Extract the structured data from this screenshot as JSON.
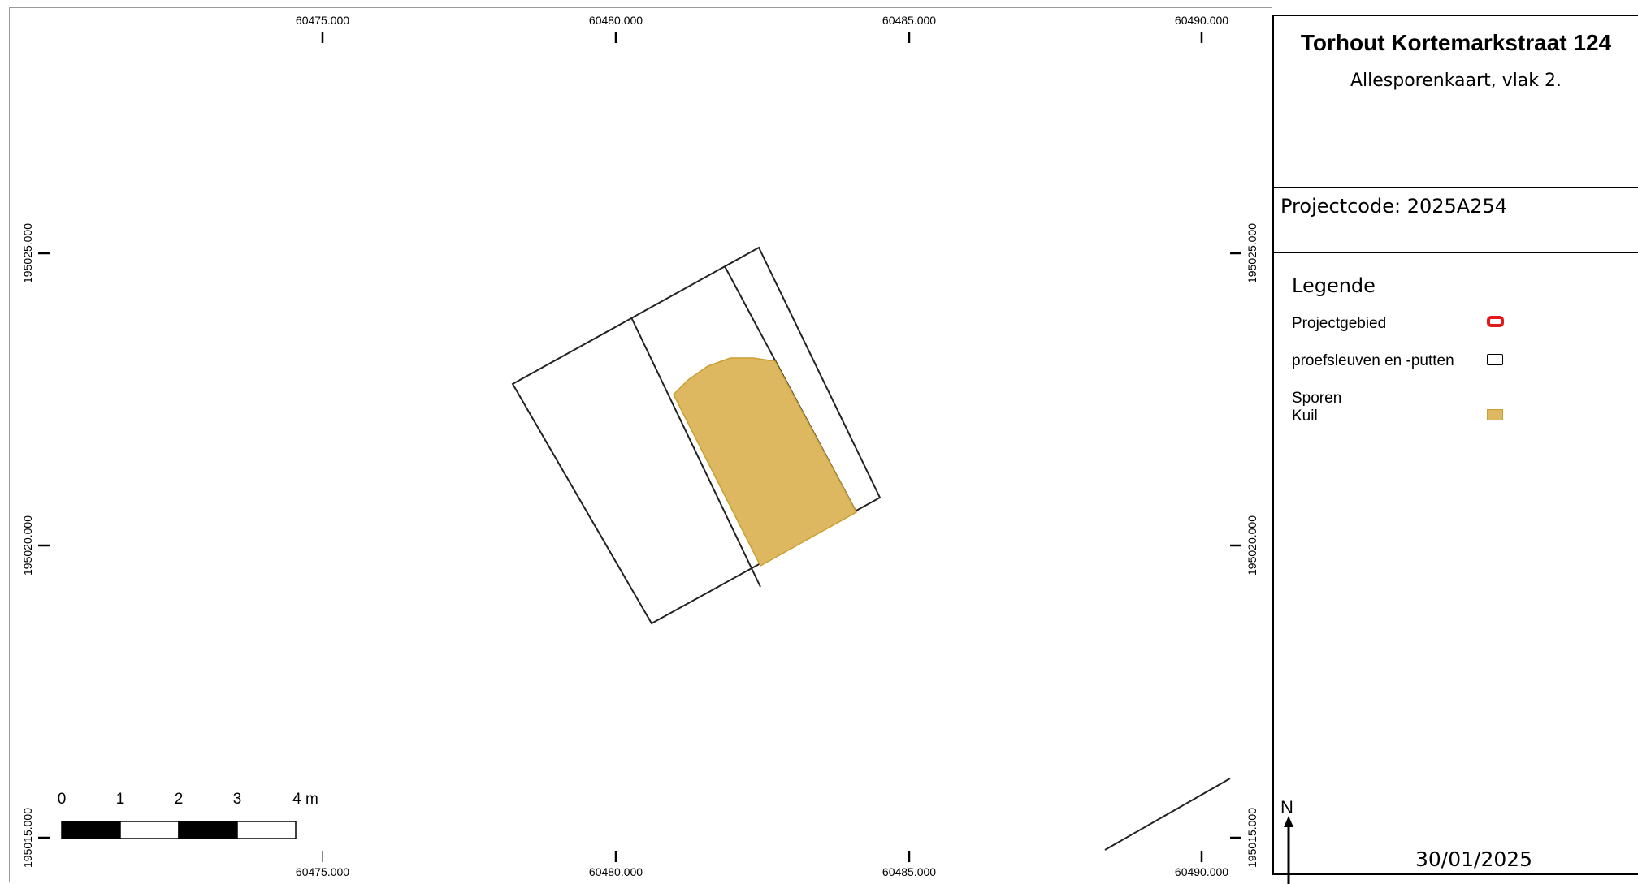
{
  "map": {
    "x_labels": [
      "60475.000",
      "60480.000",
      "60485.000",
      "60490.000"
    ],
    "y_labels": [
      "195025.000",
      "195020.000",
      "195015.000"
    ],
    "scale_bar": {
      "labels": [
        "0",
        "1",
        "2",
        "3",
        "4 m"
      ],
      "unit": "m"
    },
    "colors": {
      "projectgebied": "#e31a1c",
      "kuil_fill": "#ddb860",
      "kuil_stroke": "#c8a030",
      "trench": "#000000"
    }
  },
  "panel": {
    "title": "Torhout Kortemarkstraat 124",
    "subtitle": "Allesporenkaart, vlak 2.",
    "projectcode": "Projectcode: 2025A254",
    "legend": {
      "heading": "Legende",
      "projectgebied": "Projectgebied",
      "proefsleuven": "proefsleuven en -putten",
      "sporen": "Sporen",
      "kuil": "Kuil"
    },
    "north": "N",
    "date": "30/01/2025"
  }
}
